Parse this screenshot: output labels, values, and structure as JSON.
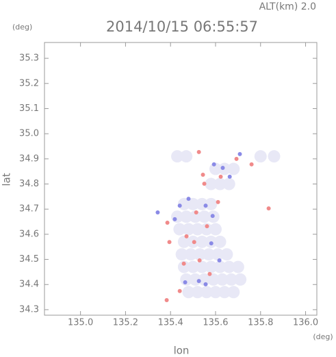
{
  "chart_data": {
    "type": "scatter",
    "header": "ALT(km) 2.0",
    "title": "2014/10/15 06:55:57",
    "y_unit": "(deg)",
    "x_unit": "(deg)",
    "xlabel": "lon",
    "ylabel": "lat",
    "xlim": [
      134.84,
      136.05
    ],
    "ylim": [
      34.278,
      35.363
    ],
    "xticks": [
      {
        "value": 135.0,
        "label": "135.0"
      },
      135.2,
      135.4,
      135.6,
      135.8,
      {
        "value": 136.0,
        "label": "136.0"
      }
    ],
    "yticks": [
      34.3,
      34.4,
      34.5,
      34.6,
      34.7,
      34.8,
      34.9,
      {
        "value": 35.0,
        "label": "35.0"
      },
      35.1,
      35.2,
      35.3
    ],
    "series": [
      {
        "color": "#e8e8f6",
        "x": [
          135.48,
          135.52,
          135.56,
          135.6,
          135.64,
          135.68,
          135.47,
          135.51,
          135.55,
          135.59,
          135.63,
          135.67,
          135.71,
          135.46,
          135.5,
          135.54,
          135.58,
          135.62,
          135.66,
          135.7,
          135.45,
          135.49,
          135.53,
          135.57,
          135.61,
          135.65,
          135.46,
          135.5,
          135.54,
          135.58,
          135.62,
          135.44,
          135.48,
          135.52,
          135.56,
          135.6,
          135.43,
          135.47,
          135.51,
          135.55,
          135.59,
          135.46,
          135.5,
          135.54,
          135.58,
          135.58,
          135.62,
          135.66,
          135.6,
          135.64,
          135.68,
          135.43,
          135.47,
          135.8,
          135.86
        ],
        "y": [
          34.37,
          34.37,
          34.37,
          34.37,
          34.37,
          34.37,
          34.42,
          34.42,
          34.42,
          34.42,
          34.42,
          34.42,
          34.42,
          34.47,
          34.47,
          34.47,
          34.47,
          34.47,
          34.47,
          34.47,
          34.52,
          34.52,
          34.52,
          34.52,
          34.52,
          34.52,
          34.57,
          34.57,
          34.57,
          34.57,
          34.57,
          34.62,
          34.62,
          34.62,
          34.62,
          34.62,
          34.67,
          34.67,
          34.67,
          34.67,
          34.67,
          34.72,
          34.72,
          34.72,
          34.72,
          34.8,
          34.8,
          34.8,
          34.86,
          34.86,
          34.86,
          34.91,
          34.91,
          34.91,
          34.91
        ]
      },
      {
        "color": "#8a8ae6",
        "x": [
          135.343,
          135.441,
          135.556,
          135.587,
          135.663,
          135.632,
          135.708,
          135.526,
          135.556,
          135.617,
          135.419,
          135.465,
          135.593,
          135.581,
          135.48
        ],
        "y": [
          34.687,
          34.714,
          34.714,
          34.673,
          34.829,
          34.864,
          34.919,
          34.414,
          34.401,
          34.496,
          34.66,
          34.409,
          34.878,
          34.564,
          34.741
        ]
      },
      {
        "color": "#f08a8a",
        "x": [
          135.383,
          135.526,
          135.544,
          135.623,
          135.693,
          135.76,
          135.836,
          135.386,
          135.514,
          135.471,
          135.562,
          135.459,
          135.529,
          135.574,
          135.441,
          135.505,
          135.395,
          135.611,
          135.55
        ],
        "y": [
          34.338,
          34.927,
          34.837,
          34.829,
          34.9,
          34.878,
          34.703,
          34.646,
          34.687,
          34.592,
          34.632,
          34.483,
          34.496,
          34.442,
          34.374,
          34.569,
          34.569,
          34.728,
          34.801
        ]
      }
    ]
  }
}
